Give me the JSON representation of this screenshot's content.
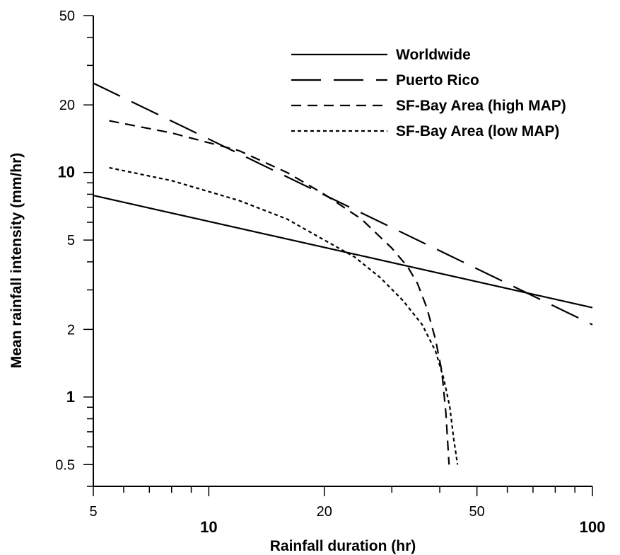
{
  "chart_data": {
    "type": "line",
    "xlabel": "Rainfall duration (hr)",
    "ylabel": "Mean rainfall intensity (mm/hr)",
    "xscale": "log",
    "yscale": "log",
    "xlim": [
      5,
      100
    ],
    "ylim": [
      0.4,
      50
    ],
    "x_ticks": [
      {
        "value": 5,
        "label": "5",
        "major": false
      },
      {
        "value": 10,
        "label": "10",
        "major": true
      },
      {
        "value": 20,
        "label": "20",
        "major": false
      },
      {
        "value": 50,
        "label": "50",
        "major": false
      },
      {
        "value": 100,
        "label": "100",
        "major": true
      }
    ],
    "y_ticks": [
      {
        "value": 0.5,
        "label": "0.5",
        "major": false
      },
      {
        "value": 1,
        "label": "1",
        "major": true
      },
      {
        "value": 2,
        "label": "2",
        "major": false
      },
      {
        "value": 5,
        "label": "5",
        "major": false
      },
      {
        "value": 10,
        "label": "10",
        "major": true
      },
      {
        "value": 20,
        "label": "20",
        "major": false
      },
      {
        "value": 50,
        "label": "50",
        "major": false
      }
    ],
    "legend_position": "top-right",
    "series": [
      {
        "name": "Worldwide",
        "dash": "solid",
        "x": [
          5,
          100
        ],
        "y": [
          7.9,
          2.5
        ]
      },
      {
        "name": "Puerto Rico",
        "dash": "long-dash",
        "x": [
          5,
          100
        ],
        "y": [
          25,
          2.1
        ]
      },
      {
        "name": "SF-Bay Area (high MAP)",
        "dash": "dash",
        "x": [
          5.5,
          8,
          12,
          16,
          20,
          25,
          30,
          33,
          35,
          37,
          39,
          40.5,
          41.5,
          42.3
        ],
        "y": [
          17,
          15,
          12.5,
          10,
          8,
          6.2,
          4.6,
          3.8,
          3.2,
          2.5,
          1.8,
          1.3,
          0.85,
          0.5
        ]
      },
      {
        "name": "SF-Bay Area (low MAP)",
        "dash": "dot",
        "x": [
          5.5,
          8,
          12,
          16,
          20,
          24,
          28,
          32,
          36,
          39,
          41,
          42.5,
          43.5,
          44.5
        ],
        "y": [
          10.5,
          9.2,
          7.5,
          6.2,
          5,
          4.2,
          3.4,
          2.7,
          2.1,
          1.6,
          1.2,
          0.9,
          0.65,
          0.5
        ]
      }
    ]
  }
}
